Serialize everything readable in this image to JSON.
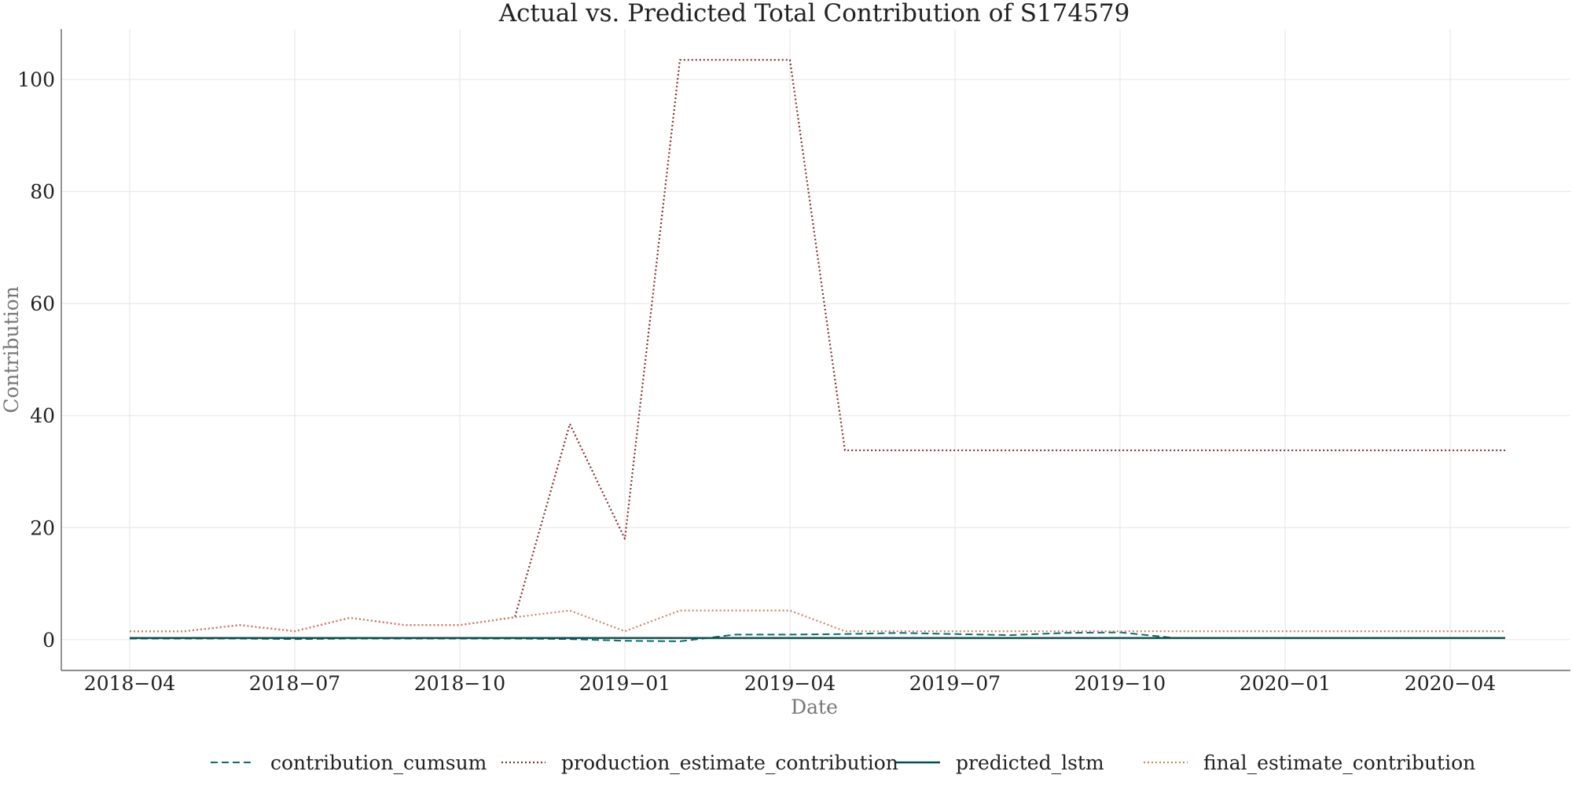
{
  "chart_data": {
    "type": "line",
    "title": "Actual vs. Predicted Total Contribution of S174579",
    "xlabel": "Date",
    "ylabel": "Contribution",
    "x_ticks": [
      "2018−04",
      "2018−07",
      "2018−10",
      "2019−01",
      "2019−04",
      "2019−07",
      "2019−10",
      "2020−01",
      "2020−04"
    ],
    "y_ticks": [
      "0",
      "20",
      "40",
      "60",
      "80",
      "100"
    ],
    "ylim": [
      -5.5,
      109
    ],
    "grid": true,
    "legend_position": "bottom",
    "dates": [
      "2018-04",
      "2018-05",
      "2018-06",
      "2018-07",
      "2018-08",
      "2018-09",
      "2018-10",
      "2018-11",
      "2018-12",
      "2019-01",
      "2019-02",
      "2019-03",
      "2019-04",
      "2019-05",
      "2019-06",
      "2019-07",
      "2019-08",
      "2019-09",
      "2019-10",
      "2019-11",
      "2019-12",
      "2020-01",
      "2020-02",
      "2020-03",
      "2020-04",
      "2020-05"
    ],
    "series": [
      {
        "name": "contribution_cumsum",
        "color": "#0e6b6b",
        "dash": "dashed",
        "values": [
          0.2,
          0.2,
          0.2,
          0.1,
          0.2,
          0.2,
          0.2,
          0.2,
          0.1,
          -0.2,
          -0.3,
          0.9,
          0.9,
          1.0,
          1.2,
          1.0,
          0.8,
          1.2,
          1.3,
          0.3,
          0.3,
          0.3,
          0.3,
          0.3,
          0.3,
          0.3
        ]
      },
      {
        "name": "production_estimate_contribution",
        "color": "#8b2e35",
        "dash": "dotted",
        "values": [
          1.5,
          1.5,
          2.6,
          1.5,
          3.9,
          2.6,
          2.6,
          4.0,
          38.5,
          18.0,
          103.5,
          103.5,
          103.5,
          33.8,
          33.8,
          33.8,
          33.8,
          33.8,
          33.8,
          33.8,
          33.8,
          33.8,
          33.8,
          33.8,
          33.8,
          33.8
        ]
      },
      {
        "name": "predicted_lstm",
        "color": "#0a4b4b",
        "dash": "solid",
        "values": [
          0.3,
          0.3,
          0.3,
          0.3,
          0.3,
          0.3,
          0.3,
          0.3,
          0.3,
          0.3,
          0.3,
          0.3,
          0.3,
          0.3,
          0.3,
          0.3,
          0.3,
          0.3,
          0.3,
          0.3,
          0.3,
          0.3,
          0.3,
          0.3,
          0.3,
          0.3
        ]
      },
      {
        "name": "final_estimate_contribution",
        "color": "#d4836a",
        "dash": "dotted",
        "values": [
          1.5,
          1.5,
          2.6,
          1.5,
          3.9,
          2.6,
          2.6,
          4.0,
          5.2,
          1.5,
          5.2,
          5.2,
          5.2,
          1.5,
          1.5,
          1.5,
          1.5,
          1.5,
          1.5,
          1.5,
          1.5,
          1.5,
          1.5,
          1.5,
          1.5,
          1.5
        ]
      }
    ]
  }
}
